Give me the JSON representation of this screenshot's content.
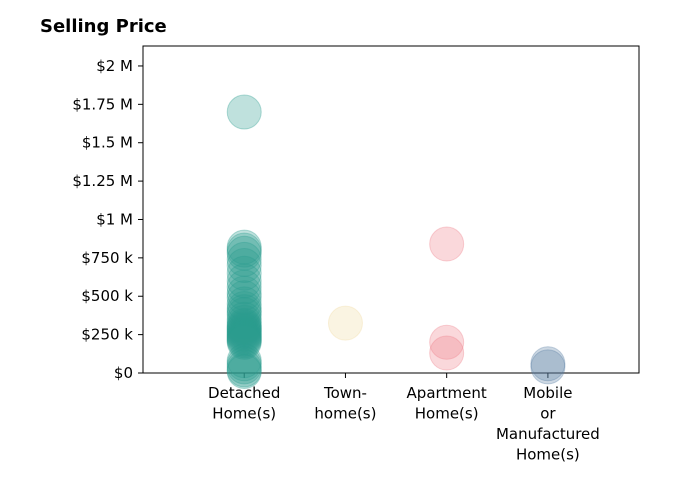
{
  "chart_data": {
    "type": "scatter",
    "title": "Selling Price",
    "xlabel": "",
    "ylabel": "",
    "categories": [
      "Detached\nHome(s)",
      "Town-\nhome(s)",
      "Apartment\nHome(s)",
      "Mobile\nor\nManufactured\nHome(s)"
    ],
    "ylim": [
      0,
      2130000
    ],
    "yticks": [
      0,
      250000,
      500000,
      750000,
      1000000,
      1250000,
      1500000,
      1750000,
      2000000
    ],
    "yticklabels": [
      "$0",
      "$250 k",
      "$500 k",
      "$750 k",
      "$1 M",
      "$1.25 M",
      "$1.5 M",
      "$1.75 M",
      "$2 M"
    ],
    "grid": false,
    "series": [
      {
        "category": "Detached\nHome(s)",
        "color": "#2a9d8f",
        "values": [
          1700000,
          820000,
          800000,
          780000,
          740000,
          700000,
          650000,
          600000,
          560000,
          520000,
          490000,
          450000,
          420000,
          400000,
          380000,
          350000,
          330000,
          310000,
          300000,
          290000,
          280000,
          270000,
          260000,
          250000,
          240000,
          230000,
          220000,
          210000,
          200000,
          80000,
          60000,
          40000,
          20000,
          10000
        ]
      },
      {
        "category": "Town-\nhome(s)",
        "color": "#f0d9a0",
        "values": [
          325000
        ]
      },
      {
        "category": "Apartment\nHome(s)",
        "color": "#ee7d89",
        "values": [
          840000,
          200000,
          130000
        ]
      },
      {
        "category": "Mobile\nor\nManufactured\nHome(s)",
        "color": "#5a7fa3",
        "values": [
          60000,
          40000
        ]
      }
    ]
  }
}
